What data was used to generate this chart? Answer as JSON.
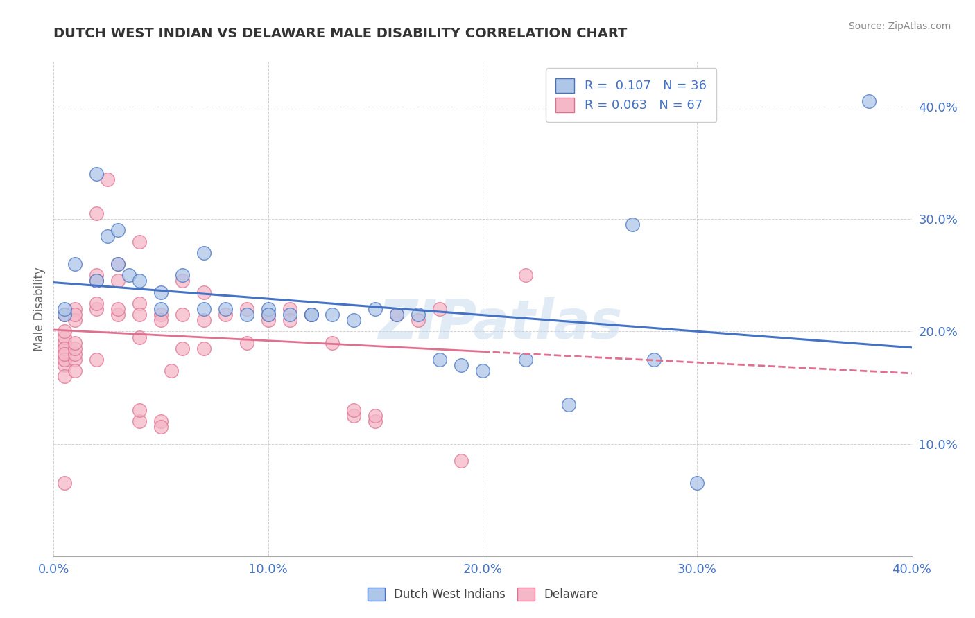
{
  "title": "DUTCH WEST INDIAN VS DELAWARE MALE DISABILITY CORRELATION CHART",
  "source": "Source: ZipAtlas.com",
  "ylabel": "Male Disability",
  "xlim": [
    0.0,
    0.4
  ],
  "ylim": [
    0.0,
    0.44
  ],
  "xtick_values": [
    0.0,
    0.1,
    0.2,
    0.3,
    0.4
  ],
  "ytick_values": [
    0.1,
    0.2,
    0.3,
    0.4
  ],
  "blue_fill": "#aec6e8",
  "blue_edge": "#4472c4",
  "pink_fill": "#f4b8c8",
  "pink_edge": "#e07090",
  "blue_line_color": "#4472c4",
  "pink_line_color": "#e07090",
  "watermark": "ZIPatlas",
  "legend_blue_label": "R =  0.107   N = 36",
  "legend_pink_label": "R = 0.063   N = 67",
  "blue_points": [
    [
      0.005,
      0.215
    ],
    [
      0.005,
      0.22
    ],
    [
      0.01,
      0.26
    ],
    [
      0.02,
      0.34
    ],
    [
      0.02,
      0.245
    ],
    [
      0.025,
      0.285
    ],
    [
      0.03,
      0.29
    ],
    [
      0.03,
      0.26
    ],
    [
      0.035,
      0.25
    ],
    [
      0.04,
      0.245
    ],
    [
      0.05,
      0.235
    ],
    [
      0.05,
      0.22
    ],
    [
      0.06,
      0.25
    ],
    [
      0.07,
      0.27
    ],
    [
      0.07,
      0.22
    ],
    [
      0.08,
      0.22
    ],
    [
      0.09,
      0.215
    ],
    [
      0.1,
      0.22
    ],
    [
      0.1,
      0.215
    ],
    [
      0.11,
      0.215
    ],
    [
      0.12,
      0.215
    ],
    [
      0.12,
      0.215
    ],
    [
      0.13,
      0.215
    ],
    [
      0.14,
      0.21
    ],
    [
      0.15,
      0.22
    ],
    [
      0.16,
      0.215
    ],
    [
      0.17,
      0.215
    ],
    [
      0.18,
      0.175
    ],
    [
      0.19,
      0.17
    ],
    [
      0.2,
      0.165
    ],
    [
      0.22,
      0.175
    ],
    [
      0.24,
      0.135
    ],
    [
      0.27,
      0.295
    ],
    [
      0.3,
      0.065
    ],
    [
      0.38,
      0.405
    ],
    [
      0.28,
      0.175
    ]
  ],
  "pink_points": [
    [
      0.005,
      0.175
    ],
    [
      0.005,
      0.18
    ],
    [
      0.005,
      0.185
    ],
    [
      0.005,
      0.19
    ],
    [
      0.005,
      0.17
    ],
    [
      0.005,
      0.195
    ],
    [
      0.005,
      0.185
    ],
    [
      0.005,
      0.215
    ],
    [
      0.005,
      0.16
    ],
    [
      0.005,
      0.2
    ],
    [
      0.005,
      0.175
    ],
    [
      0.005,
      0.18
    ],
    [
      0.005,
      0.065
    ],
    [
      0.01,
      0.22
    ],
    [
      0.01,
      0.21
    ],
    [
      0.01,
      0.215
    ],
    [
      0.01,
      0.175
    ],
    [
      0.01,
      0.18
    ],
    [
      0.01,
      0.185
    ],
    [
      0.01,
      0.19
    ],
    [
      0.01,
      0.165
    ],
    [
      0.02,
      0.25
    ],
    [
      0.02,
      0.22
    ],
    [
      0.02,
      0.225
    ],
    [
      0.02,
      0.305
    ],
    [
      0.02,
      0.175
    ],
    [
      0.02,
      0.245
    ],
    [
      0.025,
      0.335
    ],
    [
      0.03,
      0.215
    ],
    [
      0.03,
      0.26
    ],
    [
      0.03,
      0.22
    ],
    [
      0.03,
      0.245
    ],
    [
      0.04,
      0.225
    ],
    [
      0.04,
      0.195
    ],
    [
      0.04,
      0.12
    ],
    [
      0.04,
      0.13
    ],
    [
      0.04,
      0.28
    ],
    [
      0.05,
      0.215
    ],
    [
      0.05,
      0.12
    ],
    [
      0.05,
      0.115
    ],
    [
      0.05,
      0.21
    ],
    [
      0.06,
      0.215
    ],
    [
      0.06,
      0.185
    ],
    [
      0.07,
      0.21
    ],
    [
      0.07,
      0.185
    ],
    [
      0.08,
      0.215
    ],
    [
      0.09,
      0.22
    ],
    [
      0.09,
      0.19
    ],
    [
      0.1,
      0.21
    ],
    [
      0.1,
      0.215
    ],
    [
      0.11,
      0.22
    ],
    [
      0.11,
      0.21
    ],
    [
      0.12,
      0.215
    ],
    [
      0.13,
      0.19
    ],
    [
      0.14,
      0.125
    ],
    [
      0.14,
      0.13
    ],
    [
      0.15,
      0.12
    ],
    [
      0.15,
      0.125
    ],
    [
      0.16,
      0.215
    ],
    [
      0.17,
      0.21
    ],
    [
      0.18,
      0.22
    ],
    [
      0.19,
      0.085
    ],
    [
      0.22,
      0.25
    ],
    [
      0.055,
      0.165
    ],
    [
      0.06,
      0.245
    ],
    [
      0.07,
      0.235
    ],
    [
      0.04,
      0.215
    ]
  ]
}
